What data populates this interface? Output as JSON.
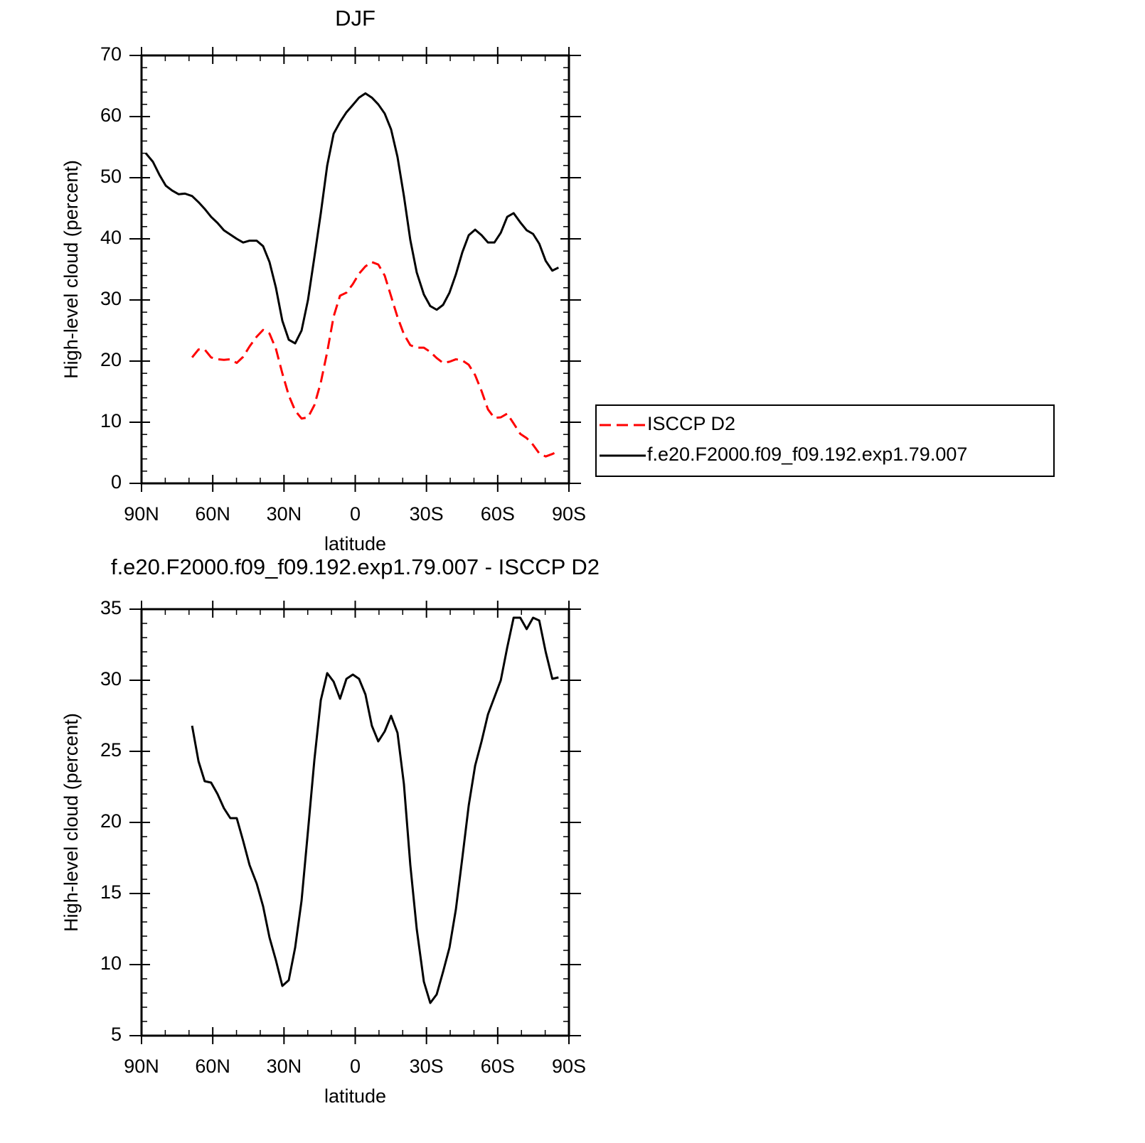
{
  "chart_data": [
    {
      "type": "line",
      "title": "DJF",
      "xlabel": "latitude",
      "ylabel": "High-level cloud (percent)",
      "x": [
        88.2,
        85.2,
        82.5,
        79.8,
        77.1,
        74.4,
        71.7,
        68.7,
        66.0,
        63.4,
        60.7,
        58.0,
        55.3,
        52.6,
        49.9,
        47.2,
        44.5,
        41.5,
        38.8,
        36.1,
        33.4,
        30.7,
        28.0,
        25.3,
        22.6,
        19.9,
        17.2,
        14.5,
        11.8,
        9.1,
        6.4,
        3.7,
        1.0,
        -1.6,
        -4.3,
        -7.0,
        -9.7,
        -12.4,
        -15.1,
        -17.8,
        -20.5,
        -23.2,
        -25.9,
        -28.9,
        -31.6,
        -34.3,
        -37.0,
        -39.7,
        -42.4,
        -45.1,
        -47.8,
        -50.5,
        -53.2,
        -55.9,
        -58.6,
        -61.3,
        -64.0,
        -66.7,
        -69.5,
        -72.2,
        -74.9,
        -77.5,
        -80.2,
        -83.0,
        -85.6
      ],
      "series": [
        {
          "name": "ISCCP D2",
          "color": "#ff0000",
          "linestyle": "dashed",
          "values": [
            null,
            null,
            null,
            null,
            null,
            null,
            null,
            20.6,
            21.9,
            21.9,
            20.6,
            20.3,
            20.2,
            20.3,
            19.7,
            20.7,
            22.4,
            24.0,
            25.1,
            24.5,
            22.0,
            18.0,
            14.4,
            11.9,
            10.6,
            10.8,
            12.8,
            16.5,
            21.5,
            27.3,
            30.7,
            31.2,
            32.6,
            34.3,
            35.5,
            36.2,
            35.8,
            34.0,
            30.6,
            27.2,
            24.4,
            22.6,
            22.2,
            22.2,
            21.5,
            20.5,
            19.7,
            19.9,
            20.3,
            20.1,
            19.4,
            17.7,
            15.1,
            12.1,
            10.7,
            10.8,
            11.4,
            9.8,
            8.1,
            7.4,
            6.3,
            4.9,
            4.4,
            4.8,
            5.3
          ]
        },
        {
          "name": "f.e20.F2000.f09_f09.192.exp1.79.007",
          "color": "#000000",
          "linestyle": "solid",
          "values": [
            54.0,
            52.6,
            50.5,
            48.7,
            47.9,
            47.3,
            47.4,
            47.0,
            46.0,
            44.9,
            43.6,
            42.6,
            41.4,
            40.7,
            40.0,
            39.4,
            39.7,
            39.7,
            38.8,
            36.2,
            32.0,
            26.6,
            23.5,
            22.9,
            25.0,
            30.0,
            37.0,
            44.2,
            52.0,
            57.2,
            59.1,
            60.7,
            61.9,
            63.1,
            63.8,
            63.1,
            62.0,
            60.5,
            57.9,
            53.4,
            47.0,
            39.8,
            34.5,
            30.9,
            29.0,
            28.4,
            29.2,
            31.2,
            34.2,
            37.8,
            40.6,
            41.5,
            40.6,
            39.4,
            39.4,
            41.0,
            43.6,
            44.2,
            42.7,
            41.4,
            40.8,
            39.2,
            36.4,
            34.8,
            35.3
          ]
        }
      ],
      "xlim": [
        90,
        -90
      ],
      "xticks": [
        {
          "value": 90,
          "label": "90N"
        },
        {
          "value": 60,
          "label": "60N"
        },
        {
          "value": 30,
          "label": "30N"
        },
        0,
        {
          "value": -30,
          "label": "30S"
        },
        {
          "value": -60,
          "label": "60S"
        },
        {
          "value": -90,
          "label": "90S"
        }
      ],
      "xminorticks": [
        80,
        70,
        50,
        40,
        20,
        10,
        -10,
        -20,
        -40,
        -50,
        -70,
        -80
      ],
      "ylim": [
        0,
        70
      ],
      "yticks": [
        0,
        10,
        20,
        30,
        40,
        50,
        60,
        70
      ],
      "yminorticks": [
        2,
        4,
        6,
        8,
        12,
        14,
        16,
        18,
        22,
        24,
        26,
        28,
        32,
        34,
        36,
        38,
        42,
        44,
        46,
        48,
        52,
        54,
        56,
        58,
        62,
        64,
        66,
        68
      ],
      "legend": "right"
    },
    {
      "type": "line",
      "title": "f.e20.F2000.f09_f09.192.exp1.79.007 - ISCCP D2",
      "xlabel": "latitude",
      "ylabel": "High-level cloud (percent)",
      "x": [
        68.7,
        66.0,
        63.4,
        60.7,
        58.0,
        55.3,
        52.6,
        49.9,
        47.2,
        44.5,
        41.5,
        38.8,
        36.1,
        33.4,
        30.7,
        28.0,
        25.3,
        22.6,
        19.9,
        17.2,
        14.5,
        11.8,
        9.1,
        6.4,
        3.7,
        1.0,
        -1.6,
        -4.3,
        -7.0,
        -9.7,
        -12.4,
        -15.1,
        -17.8,
        -20.5,
        -23.2,
        -25.9,
        -28.9,
        -31.6,
        -34.3,
        -37.0,
        -39.7,
        -42.4,
        -45.1,
        -47.8,
        -50.5,
        -53.2,
        -55.9,
        -58.6,
        -61.3,
        -64.0,
        -66.7,
        -69.5,
        -72.2,
        -74.9,
        -77.5,
        -80.2,
        -83.0,
        -85.6
      ],
      "series": [
        {
          "color": "#000000",
          "linestyle": "solid",
          "values": [
            26.8,
            24.3,
            22.9,
            22.8,
            22.0,
            21.0,
            20.3,
            20.3,
            18.7,
            17.0,
            15.7,
            14.1,
            11.9,
            10.3,
            8.5,
            8.9,
            11.2,
            14.5,
            19.4,
            24.4,
            28.6,
            30.5,
            29.9,
            28.7,
            30.1,
            30.4,
            30.1,
            29.0,
            26.8,
            25.7,
            26.4,
            27.5,
            26.3,
            22.7,
            17.0,
            12.5,
            8.8,
            7.3,
            7.9,
            9.5,
            11.2,
            13.9,
            17.5,
            21.2,
            24.0,
            25.7,
            27.6,
            28.8,
            30.0,
            32.3,
            34.4,
            34.4,
            33.6,
            34.4,
            34.2,
            32.0,
            30.1,
            30.2
          ]
        }
      ],
      "xlim": [
        90,
        -90
      ],
      "xticks": [
        {
          "value": 90,
          "label": "90N"
        },
        {
          "value": 60,
          "label": "60N"
        },
        {
          "value": 30,
          "label": "30N"
        },
        0,
        {
          "value": -30,
          "label": "30S"
        },
        {
          "value": -60,
          "label": "60S"
        },
        {
          "value": -90,
          "label": "90S"
        }
      ],
      "xminorticks": [
        80,
        70,
        50,
        40,
        20,
        10,
        -10,
        -20,
        -40,
        -50,
        -70,
        -80
      ],
      "ylim": [
        5,
        35
      ],
      "yticks": [
        5,
        10,
        15,
        20,
        25,
        30,
        35
      ],
      "yminorticks": [
        6,
        7,
        8,
        9,
        11,
        12,
        13,
        14,
        16,
        17,
        18,
        19,
        21,
        22,
        23,
        24,
        26,
        27,
        28,
        29,
        31,
        32,
        33,
        34
      ]
    }
  ]
}
